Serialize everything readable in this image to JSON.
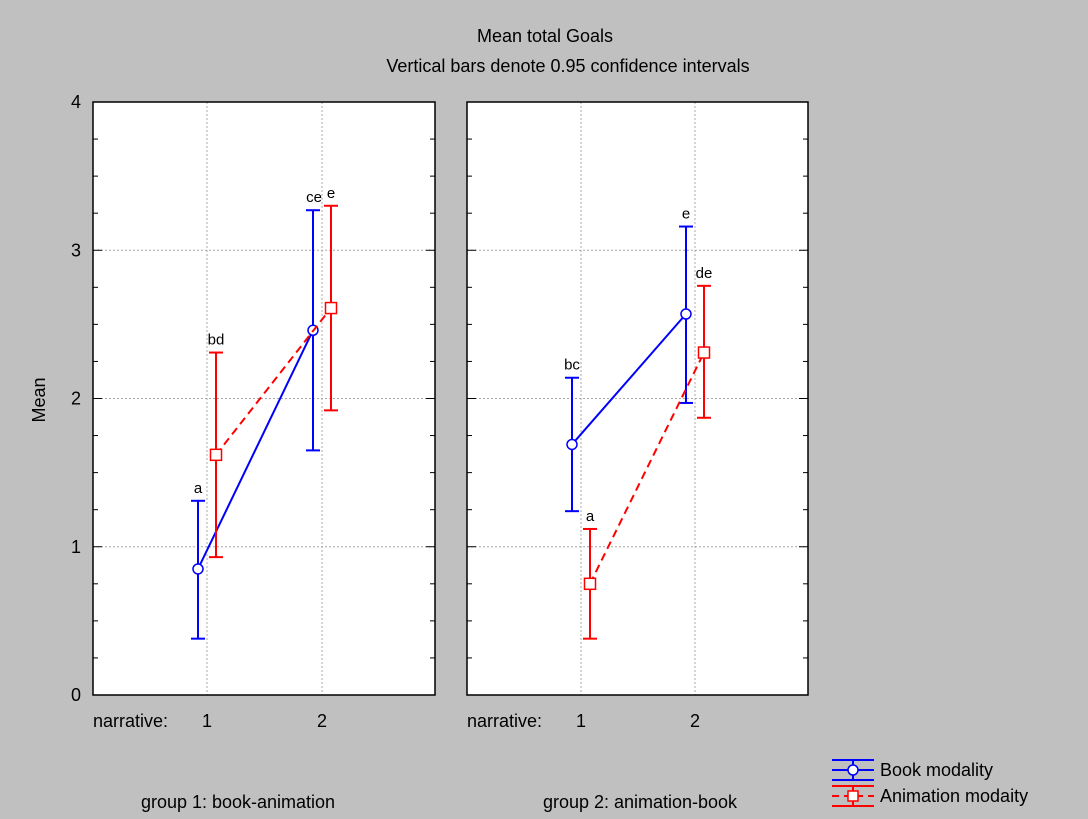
{
  "chart_data": {
    "type": "line",
    "title": "Mean total Goals",
    "subtitle": "Vertical bars denote 0.95 confidence intervals",
    "ylabel": "Mean",
    "ylim": [
      0,
      4
    ],
    "yticks": [
      "0",
      "1",
      "2",
      "3",
      "4"
    ],
    "x_axis_prefix": "narrative:",
    "categories": [
      "1",
      "2"
    ],
    "grid": true,
    "legend_position": "bottom-right",
    "series": [
      {
        "name": "Book modality",
        "color": "#0000ff",
        "line": "solid",
        "marker": "circle"
      },
      {
        "name": "Animation modaity",
        "color": "#ff0000",
        "line": "dashed",
        "marker": "square"
      }
    ],
    "panels": [
      {
        "caption": "group 1: book-animation",
        "series": [
          {
            "values": [
              0.85,
              2.46
            ],
            "lower": [
              0.38,
              1.65
            ],
            "upper": [
              1.31,
              3.27
            ],
            "labels": [
              "a",
              "ce"
            ]
          },
          {
            "values": [
              1.62,
              2.61
            ],
            "lower": [
              0.93,
              1.92
            ],
            "upper": [
              2.31,
              3.3
            ],
            "labels": [
              "bd",
              "e"
            ]
          }
        ]
      },
      {
        "caption": "group 2: animation-book",
        "series": [
          {
            "values": [
              1.69,
              2.57
            ],
            "lower": [
              1.24,
              1.97
            ],
            "upper": [
              2.14,
              3.16
            ],
            "labels": [
              "bc",
              "e"
            ]
          },
          {
            "values": [
              0.75,
              2.31
            ],
            "lower": [
              0.38,
              1.87
            ],
            "upper": [
              1.12,
              2.76
            ],
            "labels": [
              "a",
              "de"
            ]
          }
        ]
      }
    ]
  }
}
